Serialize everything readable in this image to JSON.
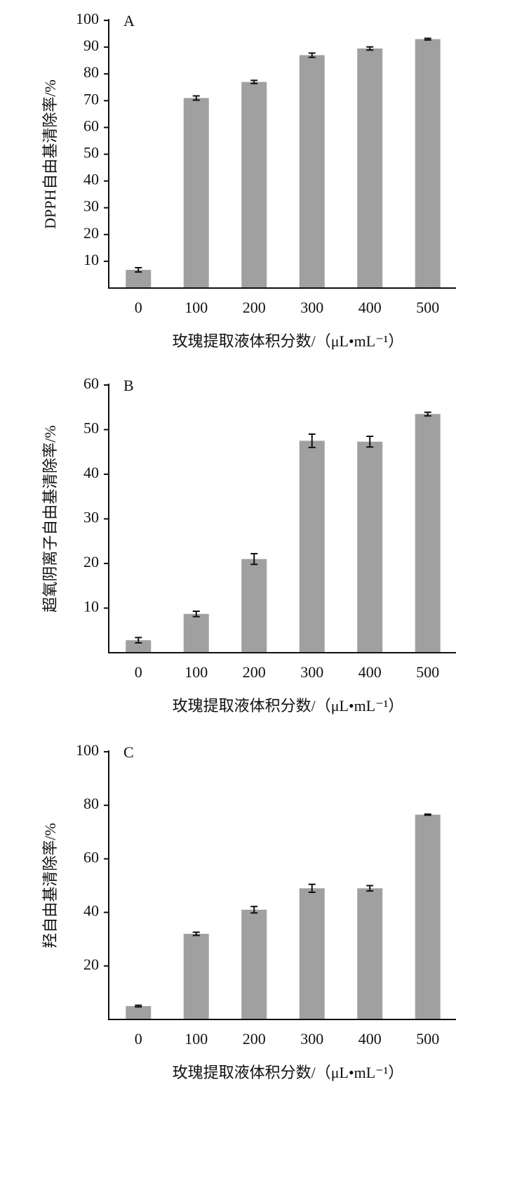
{
  "chart_data": [
    {
      "type": "bar",
      "panel_label": "A",
      "ylabel": "DPPH自由基清除率/%",
      "xlabel": "玫瑰提取液体积分数/（μL•mL⁻¹）",
      "categories": [
        "0",
        "100",
        "200",
        "300",
        "400",
        "500"
      ],
      "values": [
        6.8,
        71,
        77,
        87,
        89.5,
        93
      ],
      "errors": [
        0.8,
        0.8,
        0.6,
        0.8,
        0.6,
        0.3
      ],
      "color": "#a0a0a0",
      "ylim": [
        0,
        100
      ],
      "yticks": [
        10,
        20,
        30,
        40,
        50,
        60,
        70,
        80,
        90,
        100
      ]
    },
    {
      "type": "bar",
      "panel_label": "B",
      "ylabel": "超氧阴离子自由基清除率/%",
      "xlabel": "玫瑰提取液体积分数/（μL•mL⁻¹）",
      "categories": [
        "0",
        "100",
        "200",
        "300",
        "400",
        "500"
      ],
      "values": [
        2.8,
        8.7,
        21,
        47.5,
        47.3,
        53.5
      ],
      "errors": [
        0.6,
        0.6,
        1.2,
        1.5,
        1.2,
        0.4
      ],
      "color": "#a0a0a0",
      "ylim": [
        0,
        60
      ],
      "yticks": [
        10,
        20,
        30,
        40,
        50,
        60
      ]
    },
    {
      "type": "bar",
      "panel_label": "C",
      "ylabel": "羟自由基清除率/%",
      "xlabel": "玫瑰提取液体积分数/（μL•mL⁻¹）",
      "categories": [
        "0",
        "100",
        "200",
        "300",
        "400",
        "500"
      ],
      "values": [
        5,
        32,
        41,
        49,
        49,
        76.5
      ],
      "errors": [
        0.3,
        0.6,
        1.2,
        1.5,
        1,
        0.2
      ],
      "color": "#a0a0a0",
      "ylim": [
        0,
        100
      ],
      "yticks": [
        20,
        40,
        60,
        80,
        100
      ]
    }
  ]
}
